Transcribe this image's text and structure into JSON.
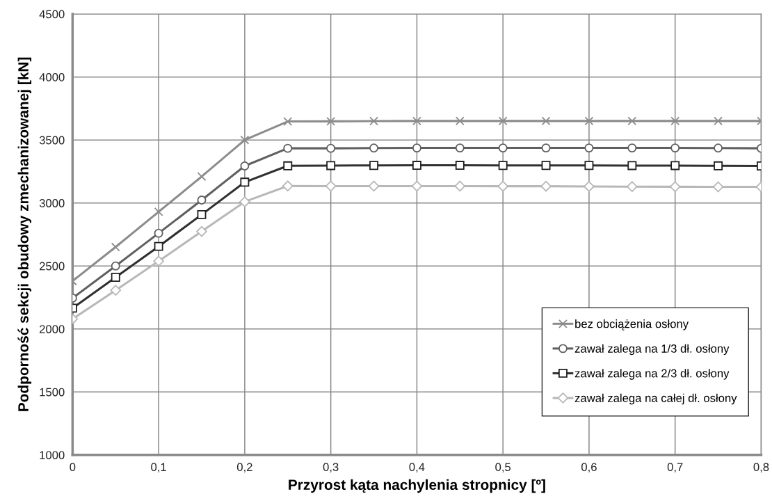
{
  "chart_data": {
    "type": "line",
    "xlabel": "Przyrost kąta nachylenia stropnicy [º]",
    "ylabel": "Podporność sekcji obudowy zmechanizowanej [kN]",
    "x": [
      0,
      0.05,
      0.1,
      0.15,
      0.2,
      0.25,
      0.3,
      0.35,
      0.4,
      0.45,
      0.5,
      0.55,
      0.6,
      0.65,
      0.7,
      0.75,
      0.8
    ],
    "series": [
      {
        "name": "bez obciążenia osłony",
        "color": "#8c8c8c",
        "marker": "cross",
        "values": [
          2380,
          2650,
          2930,
          3210,
          3500,
          3647,
          3648,
          3650,
          3651,
          3651,
          3651,
          3651,
          3651,
          3651,
          3651,
          3651,
          3651
        ]
      },
      {
        "name": "zawał zalega na 1/3 dł. osłony",
        "color": "#606060",
        "marker": "circle",
        "values": [
          2245,
          2500,
          2760,
          3023,
          3294,
          3434,
          3434,
          3436,
          3437,
          3437,
          3437,
          3437,
          3437,
          3437,
          3437,
          3436,
          3434
        ]
      },
      {
        "name": "zawał zalega na 2/3 dł. osłony",
        "color": "#303030",
        "marker": "square",
        "values": [
          2165,
          2410,
          2655,
          2908,
          3165,
          3295,
          3297,
          3298,
          3299,
          3299,
          3298,
          3298,
          3298,
          3297,
          3297,
          3295,
          3294
        ]
      },
      {
        "name": "zawał zalega na całej dł. osłony",
        "color": "#b8b8b8",
        "marker": "diamond",
        "values": [
          2079,
          2307,
          2538,
          2774,
          3010,
          3135,
          3134,
          3134,
          3134,
          3134,
          3133,
          3133,
          3131,
          3130,
          3129,
          3128,
          3128
        ]
      }
    ],
    "xlim": [
      0,
      0.8
    ],
    "ylim": [
      1000,
      4500
    ],
    "xticks": [
      0,
      {
        "value": 0.1,
        "label": "0,1"
      },
      {
        "value": 0.2,
        "label": "0,2"
      },
      {
        "value": 0.3,
        "label": "0,3"
      },
      {
        "value": 0.4,
        "label": "0,4"
      },
      {
        "value": 0.5,
        "label": "0,5"
      },
      {
        "value": 0.6,
        "label": "0,6"
      },
      {
        "value": 0.7,
        "label": "0,7"
      },
      {
        "value": 0.8,
        "label": "0,8"
      }
    ],
    "yticks": [
      1000,
      1500,
      2000,
      2500,
      3000,
      3500,
      4000,
      4500
    ],
    "grid": true,
    "legend": "bottom right",
    "line_style": "solid"
  }
}
